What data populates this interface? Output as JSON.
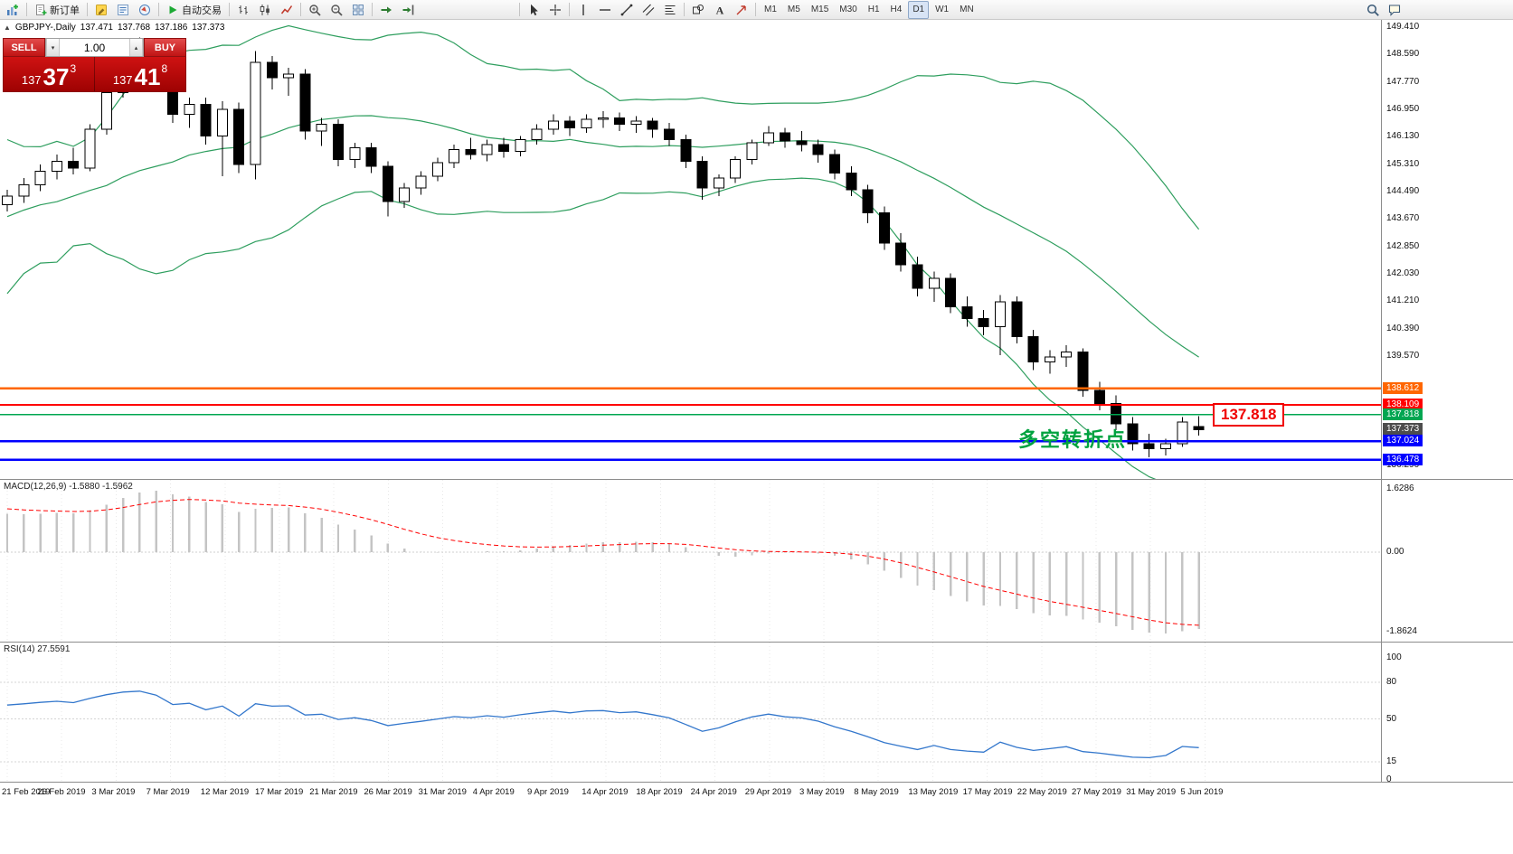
{
  "toolbar": {
    "groups": [
      {
        "items": [
          {
            "name": "new-chart",
            "icon": "chart-plus"
          }
        ]
      },
      {
        "items": [
          {
            "name": "new-order",
            "icon": "new-order",
            "label": "新订单"
          }
        ]
      },
      {
        "items": [
          {
            "name": "metaeditor",
            "icon": "metaeditor"
          },
          {
            "name": "market-watch",
            "icon": "market-watch"
          },
          {
            "name": "navigator",
            "icon": "navigator"
          }
        ]
      },
      {
        "items": [
          {
            "name": "auto-trading",
            "icon": "play",
            "label": "自动交易"
          }
        ]
      },
      {
        "items": [
          {
            "name": "bar-chart-mode",
            "icon": "bar-chart"
          },
          {
            "name": "candle-chart-mode",
            "icon": "candle-chart"
          },
          {
            "name": "line-chart-mode",
            "icon": "line-chart"
          }
        ]
      },
      {
        "items": [
          {
            "name": "zoom-in",
            "icon": "zoom-in"
          },
          {
            "name": "zoom-out",
            "icon": "zoom-out"
          },
          {
            "name": "tile-windows",
            "icon": "tile-windows"
          }
        ]
      },
      {
        "items": [
          {
            "name": "auto-scroll",
            "icon": "auto-scroll"
          },
          {
            "name": "chart-shift",
            "icon": "chart-shift"
          }
        ]
      },
      {
        "spacer": true
      },
      {
        "items": [
          {
            "name": "cursor-tool",
            "icon": "cursor"
          },
          {
            "name": "crosshair-tool",
            "icon": "crosshair"
          }
        ]
      },
      {
        "items": [
          {
            "name": "vertical-line-tool",
            "icon": "vertical-line"
          },
          {
            "name": "horizontal-line-tool",
            "icon": "horizontal-line"
          },
          {
            "name": "trendline-tool",
            "icon": "trendline"
          },
          {
            "name": "channel-tool",
            "icon": "channel"
          },
          {
            "name": "fibonacci-tool",
            "icon": "fibonacci"
          }
        ]
      },
      {
        "items": [
          {
            "name": "shapes-tool",
            "icon": "shapes"
          },
          {
            "name": "text-tool",
            "icon": "text"
          },
          {
            "name": "arrows-tool",
            "icon": "arrows"
          }
        ]
      },
      {
        "items": [
          {
            "name": "timeframe-m1",
            "label": "M1"
          },
          {
            "name": "timeframe-m5",
            "label": "M5"
          },
          {
            "name": "timeframe-m15",
            "label": "M15"
          },
          {
            "name": "timeframe-m30",
            "label": "M30"
          },
          {
            "name": "timeframe-h1",
            "label": "H1"
          },
          {
            "name": "timeframe-h4",
            "label": "H4"
          },
          {
            "name": "timeframe-d1",
            "label": "D1",
            "active": true
          },
          {
            "name": "timeframe-w1",
            "label": "W1"
          },
          {
            "name": "timeframe-mn",
            "label": "MN"
          }
        ]
      }
    ],
    "right": [
      {
        "name": "symbol-search",
        "icon": "search"
      },
      {
        "name": "community-chat",
        "icon": "chat"
      }
    ]
  },
  "chart_header": {
    "symbol": "GBPJPY-,Daily",
    "open": "137.471",
    "high": "137.768",
    "low": "137.186",
    "close": "137.373"
  },
  "trade_panel": {
    "sell_label": "SELL",
    "buy_label": "BUY",
    "volume": "1.00",
    "sell_price": {
      "base": "137",
      "big": "37",
      "sup": "3"
    },
    "buy_price": {
      "base": "137",
      "big": "41",
      "sup": "8"
    }
  },
  "annotations": {
    "turning_point": "多空转折点",
    "price_label": "137.818"
  },
  "price_axis": {
    "labels": [
      "149.410",
      "148.590",
      "147.770",
      "146.950",
      "146.130",
      "145.310",
      "144.490",
      "143.670",
      "142.850",
      "142.030",
      "141.210",
      "140.390",
      "139.570",
      "136.290"
    ],
    "badges": [
      {
        "text": "138.612",
        "color": "#ff6600",
        "current": false
      },
      {
        "text": "138.109",
        "color": "#ff0000",
        "current": false
      },
      {
        "text": "137.818",
        "color": "#00a651",
        "current": false
      },
      {
        "text": "137.373",
        "color": "#4d4d4d",
        "current": true
      },
      {
        "text": "137.024",
        "color": "#0000ff",
        "current": false
      },
      {
        "text": "136.478",
        "color": "#0000ff",
        "current": false
      }
    ]
  },
  "macd": {
    "label": "MACD(12,26,9) -1.5880 -1.5962",
    "axis": [
      "1.6286",
      "0.00",
      "-1.8624"
    ]
  },
  "rsi": {
    "label": "RSI(14) 27.5591",
    "axis": [
      "100",
      "80",
      "50",
      "15",
      "0"
    ],
    "levels": [
      80,
      50,
      15
    ]
  },
  "chart_data": {
    "type": "candlestick",
    "symbol": "GBPJPY",
    "timeframe": "Daily",
    "price_range": [
      136.29,
      149.41
    ],
    "current_price": 137.373,
    "hlines": [
      {
        "price": 138.612,
        "color": "#ff6600",
        "width": 2.5,
        "name": "resistance-line-138.612"
      },
      {
        "price": 138.109,
        "color": "#ff0000",
        "width": 2,
        "name": "resistance-line-138.109"
      },
      {
        "price": 137.818,
        "color": "#00a651",
        "width": 1.6,
        "name": "pivot-line-137.818"
      },
      {
        "price": 137.024,
        "color": "#0000ff",
        "width": 2.5,
        "name": "support-line-137.024"
      },
      {
        "price": 136.478,
        "color": "#0000ff",
        "width": 2.5,
        "name": "support-line-136.478"
      }
    ],
    "indicators": {
      "bollinger": {
        "period": 20,
        "deviation": 2
      },
      "macd": {
        "fast": 12,
        "slow": 26,
        "signal": 9,
        "value": -1.588,
        "signal_value": -1.5962
      },
      "rsi": {
        "period": 14,
        "value": 27.5591
      }
    },
    "colors": {
      "bollinger": "#2e9e5e",
      "candle_up": "#ffffff",
      "candle_down": "#000000",
      "candle_border": "#000000",
      "macd_hist": "#c4c4c4",
      "macd_signal": "#ff0000",
      "rsi_line": "#3377cc",
      "grid": "#e8e8e8"
    },
    "dates": [
      "21 Feb 2019",
      "26 Feb 2019",
      "3 Mar 2019",
      "7 Mar 2019",
      "12 Mar 2019",
      "17 Mar 2019",
      "21 Mar 2019",
      "26 Mar 2019",
      "31 Mar 2019",
      "4 Apr 2019",
      "9 Apr 2019",
      "14 Apr 2019",
      "18 Apr 2019",
      "24 Apr 2019",
      "29 Apr 2019",
      "3 May 2019",
      "8 May 2019",
      "13 May 2019",
      "17 May 2019",
      "22 May 2019",
      "27 May 2019",
      "31 May 2019",
      "5 Jun 2019"
    ],
    "warmup_closes": [
      139.5,
      140.8,
      142.0,
      143.5,
      141.8,
      143.0,
      144.5,
      143.2,
      144.8,
      145.5,
      144.2,
      143.0,
      144.0,
      145.2,
      144.5,
      143.6,
      144.8,
      144.2,
      143.8,
      144.1
    ],
    "candles": [
      [
        144.1,
        144.55,
        143.9,
        144.35
      ],
      [
        144.35,
        144.9,
        144.15,
        144.7
      ],
      [
        144.7,
        145.3,
        144.5,
        145.1
      ],
      [
        145.1,
        145.6,
        144.85,
        145.4
      ],
      [
        145.4,
        145.8,
        145.0,
        145.2
      ],
      [
        145.2,
        146.5,
        145.1,
        146.35
      ],
      [
        146.35,
        147.6,
        146.2,
        147.45
      ],
      [
        147.45,
        148.6,
        147.3,
        148.3
      ],
      [
        148.3,
        149.1,
        147.95,
        148.6
      ],
      [
        148.6,
        148.9,
        147.85,
        148.1
      ],
      [
        148.1,
        148.25,
        146.55,
        146.8
      ],
      [
        146.8,
        147.3,
        146.4,
        147.1
      ],
      [
        147.1,
        147.3,
        145.9,
        146.15
      ],
      [
        146.15,
        147.2,
        144.95,
        146.95
      ],
      [
        146.95,
        147.15,
        145.05,
        145.3
      ],
      [
        145.3,
        148.7,
        144.85,
        148.35
      ],
      [
        148.35,
        148.55,
        147.55,
        147.9
      ],
      [
        147.9,
        148.2,
        147.35,
        148.0
      ],
      [
        148.0,
        148.15,
        146.05,
        146.3
      ],
      [
        146.3,
        146.7,
        145.85,
        146.5
      ],
      [
        146.5,
        146.65,
        145.25,
        145.45
      ],
      [
        145.45,
        145.95,
        145.2,
        145.8
      ],
      [
        145.8,
        145.95,
        145.05,
        145.25
      ],
      [
        145.25,
        145.4,
        143.75,
        144.2
      ],
      [
        144.2,
        144.75,
        144.0,
        144.6
      ],
      [
        144.6,
        145.1,
        144.4,
        144.95
      ],
      [
        144.95,
        145.5,
        144.8,
        145.35
      ],
      [
        145.35,
        145.9,
        145.2,
        145.75
      ],
      [
        145.75,
        146.1,
        145.45,
        145.6
      ],
      [
        145.6,
        146.05,
        145.4,
        145.9
      ],
      [
        145.9,
        146.1,
        145.5,
        145.7
      ],
      [
        145.7,
        146.15,
        145.55,
        146.05
      ],
      [
        146.05,
        146.5,
        145.9,
        146.35
      ],
      [
        146.35,
        146.8,
        146.2,
        146.6
      ],
      [
        146.6,
        146.75,
        146.15,
        146.4
      ],
      [
        146.4,
        146.8,
        146.25,
        146.65
      ],
      [
        146.65,
        146.9,
        146.4,
        146.7
      ],
      [
        146.7,
        146.85,
        146.3,
        146.5
      ],
      [
        146.5,
        146.75,
        146.25,
        146.6
      ],
      [
        146.6,
        146.7,
        146.1,
        146.35
      ],
      [
        146.35,
        146.55,
        145.85,
        146.05
      ],
      [
        146.05,
        146.2,
        145.2,
        145.4
      ],
      [
        145.4,
        145.55,
        144.25,
        144.6
      ],
      [
        144.6,
        145.0,
        144.35,
        144.9
      ],
      [
        144.9,
        145.55,
        144.75,
        145.45
      ],
      [
        145.45,
        146.05,
        145.3,
        145.95
      ],
      [
        145.95,
        146.45,
        145.85,
        146.25
      ],
      [
        146.25,
        146.4,
        145.8,
        146.0
      ],
      [
        146.0,
        146.3,
        145.7,
        145.9
      ],
      [
        145.9,
        146.05,
        145.35,
        145.6
      ],
      [
        145.6,
        145.75,
        144.85,
        145.05
      ],
      [
        145.05,
        145.25,
        144.35,
        144.55
      ],
      [
        144.55,
        144.7,
        143.55,
        143.85
      ],
      [
        143.85,
        144.05,
        142.75,
        142.95
      ],
      [
        142.95,
        143.25,
        142.1,
        142.3
      ],
      [
        142.3,
        142.55,
        141.35,
        141.6
      ],
      [
        141.6,
        142.1,
        141.2,
        141.9
      ],
      [
        141.9,
        142.05,
        140.85,
        141.05
      ],
      [
        141.05,
        141.35,
        140.45,
        140.7
      ],
      [
        140.7,
        140.95,
        140.2,
        140.45
      ],
      [
        140.45,
        141.4,
        139.6,
        141.2
      ],
      [
        141.2,
        141.35,
        139.95,
        140.15
      ],
      [
        140.15,
        140.35,
        139.15,
        139.4
      ],
      [
        139.4,
        139.75,
        139.05,
        139.55
      ],
      [
        139.55,
        139.9,
        139.25,
        139.7
      ],
      [
        139.7,
        139.8,
        138.35,
        138.55
      ],
      [
        138.55,
        138.8,
        137.95,
        138.15
      ],
      [
        138.15,
        138.4,
        137.35,
        137.55
      ],
      [
        137.55,
        137.75,
        136.75,
        136.95
      ],
      [
        136.95,
        137.25,
        136.55,
        136.8
      ],
      [
        136.8,
        137.1,
        136.6,
        136.95
      ],
      [
        136.95,
        137.75,
        136.85,
        137.6
      ],
      [
        137.47,
        137.77,
        137.19,
        137.37
      ]
    ]
  }
}
